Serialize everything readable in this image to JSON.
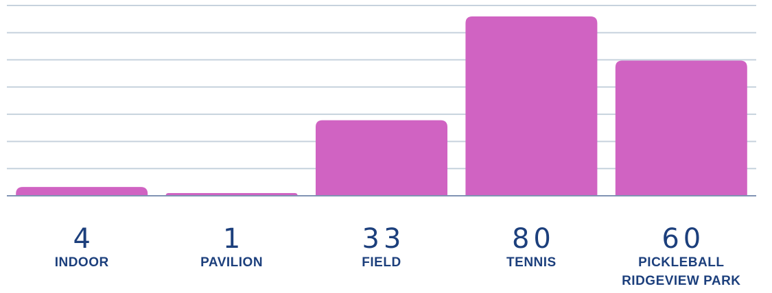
{
  "chart_data": {
    "type": "bar",
    "categories": [
      "INDOOR",
      "PAVILION",
      "FIELD",
      "TENNIS",
      "PICKLEBALL RIDGEVIEW PARK"
    ],
    "category_lines": [
      [
        "INDOOR"
      ],
      [
        "PAVILION"
      ],
      [
        "FIELD"
      ],
      [
        "TENNIS"
      ],
      [
        "PICKLEBALL",
        "RIDGEVIEW PARK"
      ]
    ],
    "values": [
      4,
      1,
      33,
      80,
      60
    ],
    "value_labels": [
      "4",
      "1",
      "33",
      "80",
      "60"
    ],
    "ylim": [
      0,
      80
    ],
    "grid": true,
    "colors": {
      "bar": "#d063c2",
      "grid": "#c6d2dd",
      "baseline": "#7f93b3",
      "label": "#1c3f7c"
    }
  }
}
